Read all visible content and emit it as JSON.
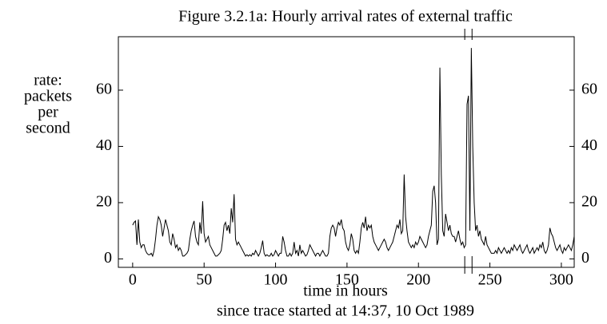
{
  "chart_data": {
    "type": "line",
    "title": "Figure 3.2.1a: Hourly arrival rates of external traffic",
    "ylabel_lines": [
      "rate:",
      "packets",
      "per",
      "second"
    ],
    "xlabel": "time in hours",
    "caption": "since trace started at 14:37, 10 Oct 1989",
    "color": "#000000",
    "xlim": [
      -10,
      309
    ],
    "xticks": [
      0,
      50,
      100,
      150,
      200,
      250,
      300
    ],
    "ylim": [
      -3,
      79
    ],
    "yticks": [
      0,
      20,
      40,
      60
    ],
    "vlines": [
      232.4,
      237.5
    ],
    "values": [
      12,
      13,
      13.5,
      5,
      14,
      6,
      4,
      5,
      5,
      3,
      2,
      1.5,
      1.5,
      2,
      1,
      3,
      7,
      12,
      15,
      14,
      12,
      8,
      11,
      14,
      12,
      10,
      6,
      5,
      9,
      7,
      4,
      5,
      3,
      4,
      3,
      1,
      1,
      1.5,
      2,
      3,
      7,
      10,
      12,
      13.5,
      8,
      6,
      5,
      13,
      9,
      20.5,
      9,
      6,
      7,
      8,
      5,
      4,
      3,
      2,
      1,
      1,
      1.5,
      2,
      3,
      7,
      12,
      13,
      10,
      12,
      9,
      18,
      13,
      23,
      7,
      5,
      6,
      5,
      4,
      3,
      2,
      1,
      1.5,
      1,
      1.5,
      1,
      2,
      1.5,
      3,
      2,
      1,
      2,
      4,
      6.5,
      2,
      1,
      1.5,
      1,
      1,
      2,
      1,
      1.5,
      3,
      2,
      1,
      2,
      2,
      8,
      6,
      3,
      1,
      1,
      2,
      1,
      2,
      6,
      2,
      3,
      1,
      5,
      2,
      3,
      2,
      1,
      1.5,
      3,
      5,
      4,
      3,
      2,
      1,
      2,
      2,
      1,
      2,
      3,
      2,
      1,
      1,
      2,
      8,
      11,
      12,
      11,
      8,
      11,
      13,
      12,
      14,
      11,
      10,
      6,
      4,
      3,
      5,
      9,
      7,
      3,
      2,
      3,
      2,
      6,
      11,
      13,
      11,
      15,
      10,
      12,
      11,
      12,
      8,
      6,
      5,
      4,
      3,
      4,
      5,
      6,
      7,
      6,
      4,
      3,
      4,
      5,
      6,
      8,
      10,
      12,
      11,
      14,
      9,
      10,
      30,
      15,
      10,
      6,
      5,
      4,
      5,
      4,
      6,
      5,
      6,
      8,
      7,
      6,
      5,
      4,
      5,
      8,
      10,
      12,
      24,
      26,
      20,
      5,
      7,
      68,
      30,
      10,
      8,
      16,
      13,
      10,
      12,
      9,
      8,
      8,
      6,
      8,
      10,
      7,
      5,
      6,
      4,
      5,
      55,
      58,
      10,
      75,
      40,
      20,
      10,
      12,
      8,
      10,
      7,
      6,
      5,
      8,
      5,
      4,
      3,
      2,
      2,
      2,
      3,
      2,
      4,
      3,
      2,
      3,
      4,
      3,
      2,
      3,
      2,
      4,
      3,
      5,
      4,
      3,
      4,
      5,
      3,
      2,
      3,
      4,
      5,
      3,
      2,
      3,
      4,
      2,
      3,
      4,
      3,
      5,
      4,
      6,
      3,
      2,
      3,
      5,
      11,
      9,
      8,
      6,
      4,
      3,
      4,
      5,
      3,
      2,
      4,
      3,
      4,
      5,
      4,
      3,
      5,
      8
    ]
  }
}
